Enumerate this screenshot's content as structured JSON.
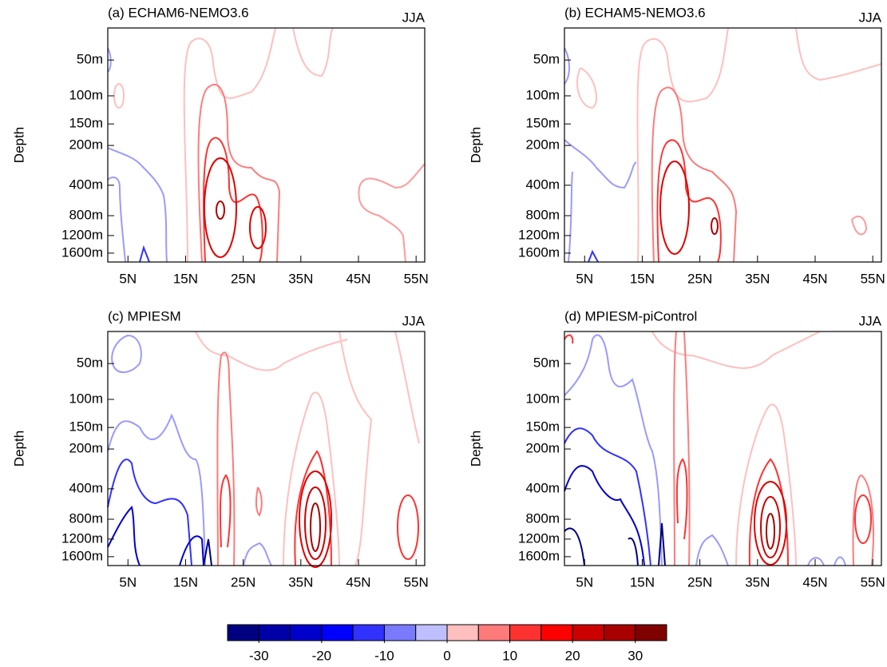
{
  "chart_data": [
    {
      "type": "contour",
      "title": "(a) ECHAM6-NEMO3.6",
      "season": "JJA",
      "ylabel": "Depth",
      "xlim": [
        1.5,
        56.5
      ],
      "xticks": [
        {
          "value": 5,
          "label": "5N"
        },
        {
          "value": 15,
          "label": "15N"
        },
        {
          "value": 25,
          "label": "25N"
        },
        {
          "value": 35,
          "label": "35N"
        },
        {
          "value": 45,
          "label": "45N"
        },
        {
          "value": 55,
          "label": "55N"
        }
      ],
      "yticks": [
        {
          "value": 50,
          "label": "50m"
        },
        {
          "value": 100,
          "label": "100m"
        },
        {
          "value": 150,
          "label": "150m"
        },
        {
          "value": 200,
          "label": "200m"
        },
        {
          "value": 400,
          "label": "400m"
        },
        {
          "value": 800,
          "label": "800m"
        },
        {
          "value": 1200,
          "label": "1200m"
        },
        {
          "value": 1600,
          "label": "1600m"
        }
      ]
    },
    {
      "type": "contour",
      "title": "(b) ECHAM5-NEMO3.6",
      "season": "JJA",
      "ylabel": "Depth",
      "xlim": [
        1.5,
        56.5
      ],
      "xticks": [
        {
          "value": 5,
          "label": "5N"
        },
        {
          "value": 15,
          "label": "15N"
        },
        {
          "value": 25,
          "label": "25N"
        },
        {
          "value": 35,
          "label": "35N"
        },
        {
          "value": 45,
          "label": "45N"
        },
        {
          "value": 55,
          "label": "55N"
        }
      ],
      "yticks": [
        {
          "value": 50,
          "label": "50m"
        },
        {
          "value": 100,
          "label": "100m"
        },
        {
          "value": 150,
          "label": "150m"
        },
        {
          "value": 200,
          "label": "200m"
        },
        {
          "value": 400,
          "label": "400m"
        },
        {
          "value": 800,
          "label": "800m"
        },
        {
          "value": 1200,
          "label": "1200m"
        },
        {
          "value": 1600,
          "label": "1600m"
        }
      ]
    },
    {
      "type": "contour",
      "title": "(c) MPIESM",
      "season": "JJA",
      "ylabel": "Depth",
      "xlim": [
        1.5,
        56.5
      ],
      "xticks": [
        {
          "value": 5,
          "label": "5N"
        },
        {
          "value": 15,
          "label": "15N"
        },
        {
          "value": 25,
          "label": "25N"
        },
        {
          "value": 35,
          "label": "35N"
        },
        {
          "value": 45,
          "label": "45N"
        },
        {
          "value": 55,
          "label": "55N"
        }
      ],
      "yticks": [
        {
          "value": 50,
          "label": "50m"
        },
        {
          "value": 100,
          "label": "100m"
        },
        {
          "value": 150,
          "label": "150m"
        },
        {
          "value": 200,
          "label": "200m"
        },
        {
          "value": 400,
          "label": "400m"
        },
        {
          "value": 800,
          "label": "800m"
        },
        {
          "value": 1200,
          "label": "1200m"
        },
        {
          "value": 1600,
          "label": "1600m"
        }
      ]
    },
    {
      "type": "contour",
      "title": "(d) MPIESM-piControl",
      "season": "JJA",
      "ylabel": "Depth",
      "xlim": [
        1.5,
        56.5
      ],
      "xticks": [
        {
          "value": 5,
          "label": "5N"
        },
        {
          "value": 15,
          "label": "15N"
        },
        {
          "value": 25,
          "label": "25N"
        },
        {
          "value": 35,
          "label": "35N"
        },
        {
          "value": 45,
          "label": "45N"
        },
        {
          "value": 55,
          "label": "55N"
        }
      ],
      "yticks": [
        {
          "value": 50,
          "label": "50m"
        },
        {
          "value": 100,
          "label": "100m"
        },
        {
          "value": 150,
          "label": "150m"
        },
        {
          "value": 200,
          "label": "200m"
        },
        {
          "value": 400,
          "label": "400m"
        },
        {
          "value": 800,
          "label": "800m"
        },
        {
          "value": 1200,
          "label": "1200m"
        },
        {
          "value": 1600,
          "label": "1600m"
        }
      ]
    }
  ],
  "colorbar": {
    "lim": [
      -35,
      35
    ],
    "ticks": [
      -30,
      -20,
      -10,
      0,
      10,
      20,
      30
    ],
    "colors": [
      "#000080",
      "#0000a8",
      "#0000cd",
      "#0000ff",
      "#3232ff",
      "#7a7aff",
      "#bfbfff",
      "#ffbfbf",
      "#ff7a7a",
      "#ff3232",
      "#ff0000",
      "#cd0000",
      "#a80000",
      "#800000"
    ]
  }
}
